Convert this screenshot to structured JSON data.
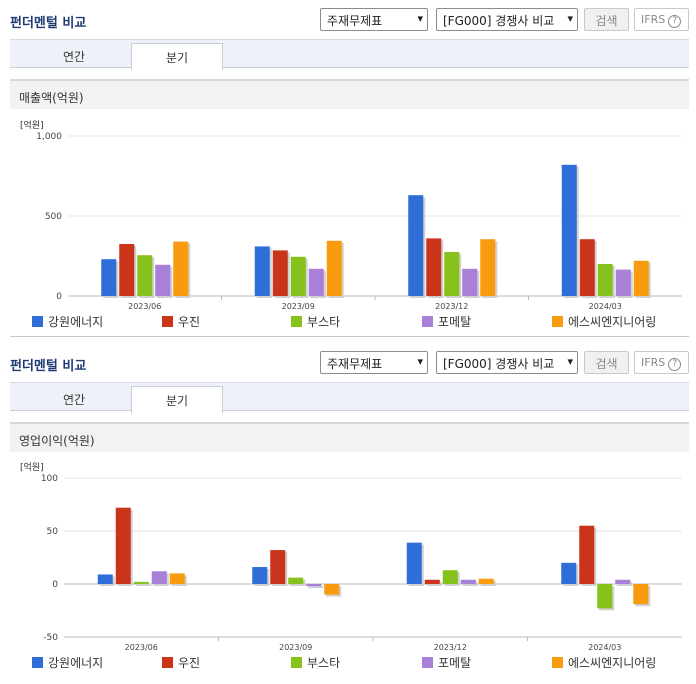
{
  "panels": [
    {
      "title": "펀더멘털 비교",
      "select1": "주재무제표",
      "select2": "[FG000] 경쟁사 비교",
      "search_label": "검색",
      "ifrs_label": "IFRS",
      "ifrs_help": "?",
      "tabs": [
        {
          "label": "연간"
        },
        {
          "label": "분기"
        }
      ],
      "active_tab": 1,
      "chart_title": "매출액(억원)",
      "unit_label": "[억원]"
    },
    {
      "title": "펀더멘털 비교",
      "select1": "주재무제표",
      "select2": "[FG000] 경쟁사 비교",
      "search_label": "검색",
      "ifrs_label": "IFRS",
      "ifrs_help": "?",
      "tabs": [
        {
          "label": "연간"
        },
        {
          "label": "분기"
        }
      ],
      "active_tab": 1,
      "chart_title": "영업이익(억원)",
      "unit_label": "[억원]"
    }
  ],
  "chart_data": [
    {
      "type": "bar",
      "title": "매출액(억원)",
      "ylabel": "[억원]",
      "categories": [
        "2023/06",
        "2023/09",
        "2023/12",
        "2024/03"
      ],
      "yticks": [
        "0",
        "500",
        "1,000"
      ],
      "ylim": [
        0,
        1000
      ],
      "grid": true,
      "legend_position": "bottom",
      "series": [
        {
          "name": "강원에너지",
          "color": "#2f6ed8",
          "values": [
            230,
            310,
            630,
            820
          ]
        },
        {
          "name": "우진",
          "color": "#c9341b",
          "values": [
            325,
            285,
            360,
            355
          ]
        },
        {
          "name": "부스타",
          "color": "#86c21b",
          "values": [
            255,
            245,
            275,
            200
          ]
        },
        {
          "name": "포메탈",
          "color": "#a880d8",
          "values": [
            195,
            170,
            170,
            165
          ]
        },
        {
          "name": "에스씨엔지니어링",
          "color": "#f99b0e",
          "values": [
            340,
            345,
            355,
            220
          ]
        }
      ]
    },
    {
      "type": "bar",
      "title": "영업이익(억원)",
      "ylabel": "[억원]",
      "categories": [
        "2023/06",
        "2023/09",
        "2023/12",
        "2024/03"
      ],
      "yticks": [
        "-50",
        "0",
        "50",
        "100"
      ],
      "ylim": [
        -50,
        100
      ],
      "grid": true,
      "legend_position": "bottom",
      "series": [
        {
          "name": "강원에너지",
          "color": "#2f6ed8",
          "values": [
            9,
            16,
            39,
            20
          ]
        },
        {
          "name": "우진",
          "color": "#c9341b",
          "values": [
            72,
            32,
            4,
            55
          ]
        },
        {
          "name": "부스타",
          "color": "#86c21b",
          "values": [
            2,
            6,
            13,
            -23
          ]
        },
        {
          "name": "포메탈",
          "color": "#a880d8",
          "values": [
            12,
            -2,
            4,
            4
          ]
        },
        {
          "name": "에스씨엔지니어링",
          "color": "#f99b0e",
          "values": [
            10,
            -10,
            5,
            -19
          ]
        }
      ]
    }
  ]
}
